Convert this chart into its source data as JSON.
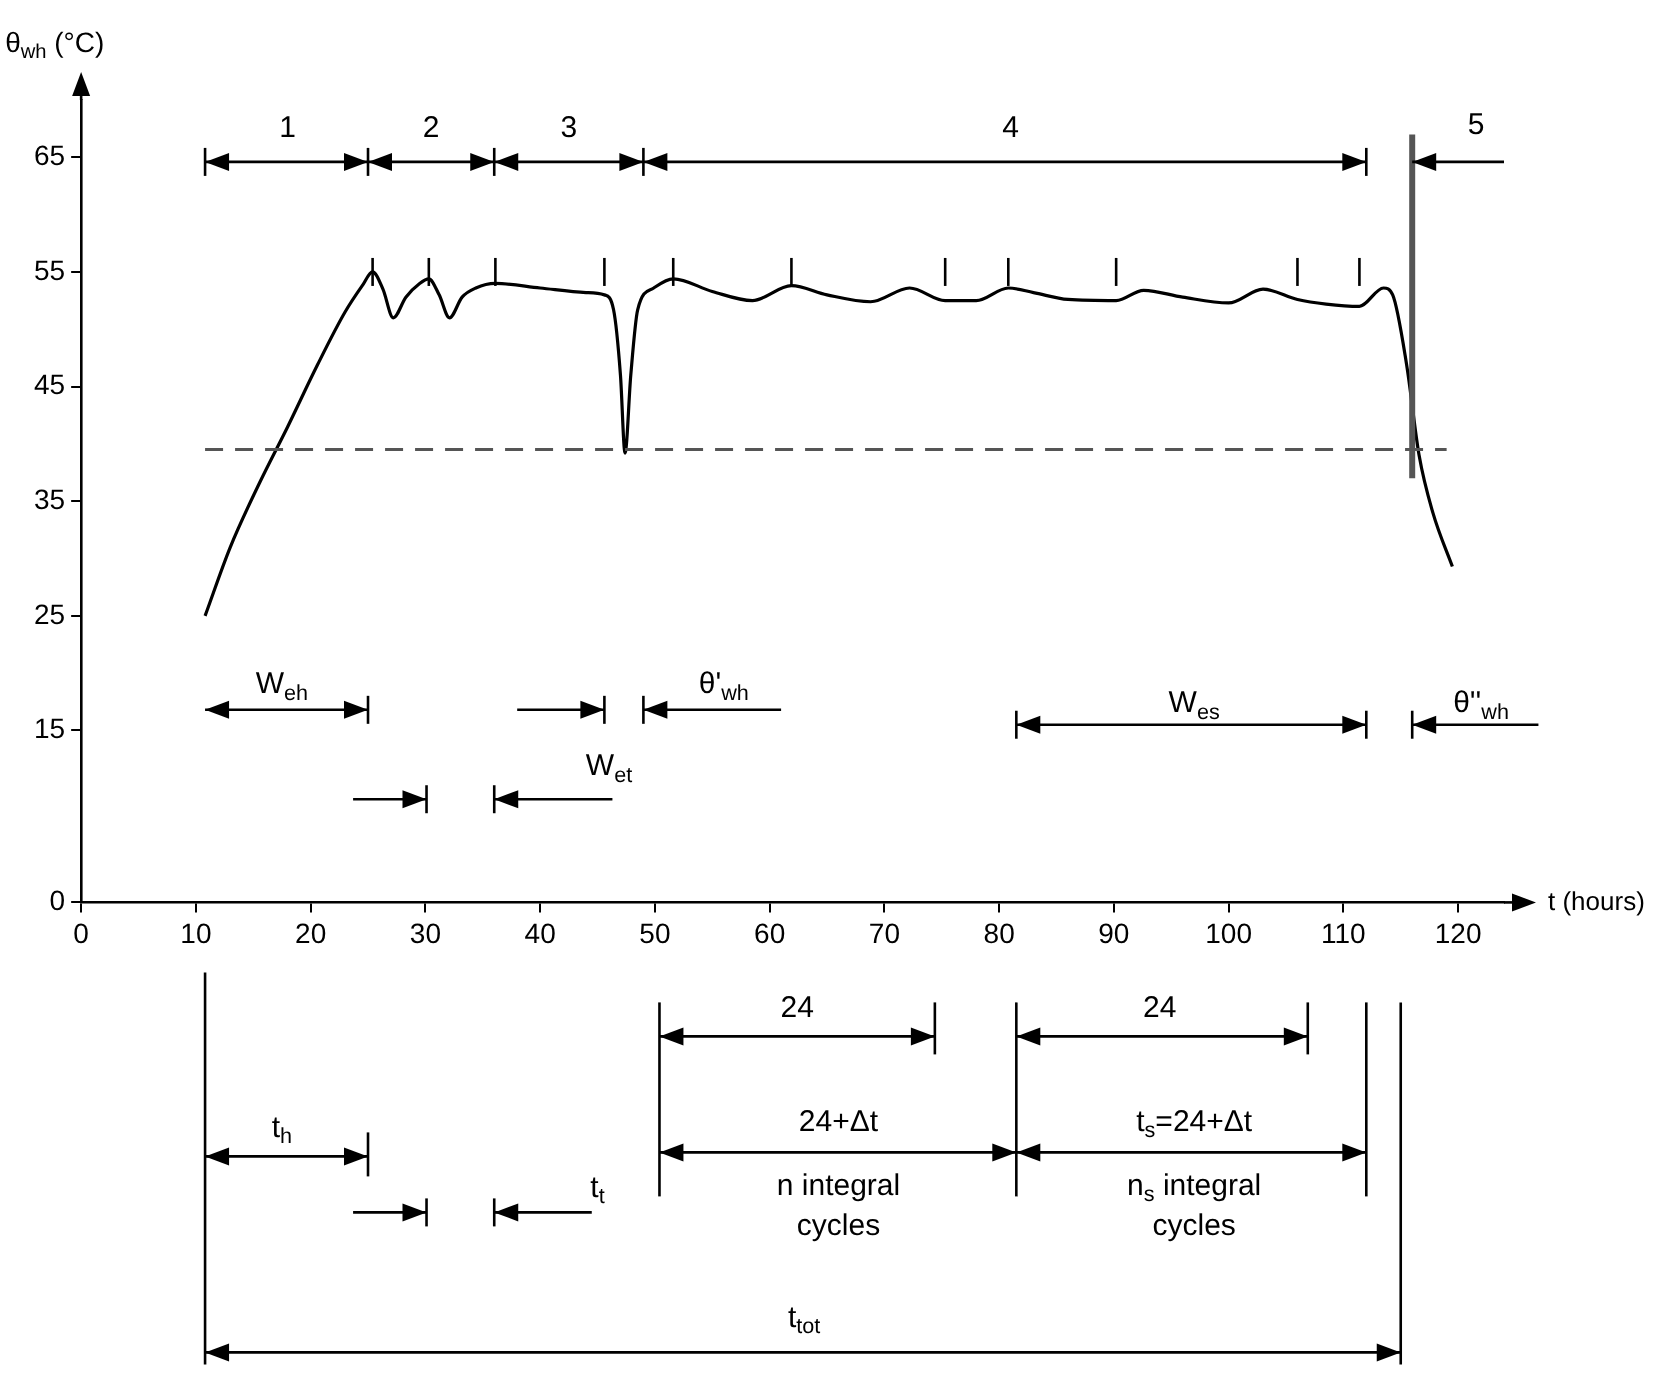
{
  "chart_data": {
    "type": "line",
    "xlabel": "t (hours)",
    "ylabel": "θ$_{wh}$ (°C)",
    "x": [
      10.8,
      13,
      15.5,
      18,
      20.6,
      23,
      24.5,
      25.4,
      26.3,
      27.2,
      28.3,
      29.5,
      30.3,
      31.2,
      32.1,
      33.2,
      34.4,
      36.1,
      40,
      44,
      45.6,
      46.4,
      47,
      47.4,
      47.9,
      48.5,
      49.9,
      51.6,
      55,
      58.5,
      61.9,
      65,
      68.8,
      72.2,
      75.3,
      78,
      80.8,
      83,
      86,
      90.2,
      92.6,
      96,
      100,
      103,
      106,
      108.5,
      111.4,
      113.5,
      114.3,
      115.5,
      116.6,
      117.8,
      119.5
    ],
    "series": [
      {
        "color": "#000000",
        "values": [
          25,
          31,
          36.5,
          41.5,
          46.9,
          51.5,
          53.8,
          55,
          53.5,
          51,
          52.8,
          54,
          54.4,
          53,
          51,
          52.8,
          53.6,
          54,
          53.6,
          53.2,
          53,
          51.7,
          46,
          39.2,
          46,
          51.7,
          53.6,
          54.4,
          53.3,
          52.5,
          53.8,
          53,
          52.4,
          53.6,
          52.5,
          52.5,
          53.6,
          53.2,
          52.6,
          52.5,
          53.4,
          52.8,
          52.3,
          53.5,
          52.6,
          52.2,
          52,
          53.6,
          53,
          47,
          39,
          34,
          29.3
        ]
      }
    ],
    "xlim": [
      0,
      124
    ],
    "ylim": [
      0,
      70
    ],
    "xticks": [
      0,
      10,
      20,
      30,
      40,
      50,
      60,
      70,
      80,
      90,
      100,
      110,
      120
    ],
    "yticks": [
      0,
      15,
      25,
      35,
      45,
      55,
      65
    ],
    "ref_lines": [
      {
        "axis": "y",
        "value": 39.5,
        "line_style": "dashed",
        "color": "#555555"
      },
      {
        "axis": "x",
        "value": 116,
        "color": "#555555"
      }
    ],
    "marker": "none",
    "grid": false,
    "legend": false,
    "annotations": [
      "1",
      "2",
      "3",
      "4",
      {
        "text": "5",
        "x": 116,
        "y": 65
      },
      "W$_{eh}$",
      "W$_{et}$",
      "θ'$_{wh}$",
      "W$_{es}$",
      "θ''$_{wh}$",
      "24",
      "24+Δt",
      "n integral cycles",
      "24",
      "t$_{s}$=24+Δt",
      "n$_{s}$ integral cycles",
      "t$_{h}$",
      "t$_{t}$",
      "t$_{tot}$"
    ]
  }
}
